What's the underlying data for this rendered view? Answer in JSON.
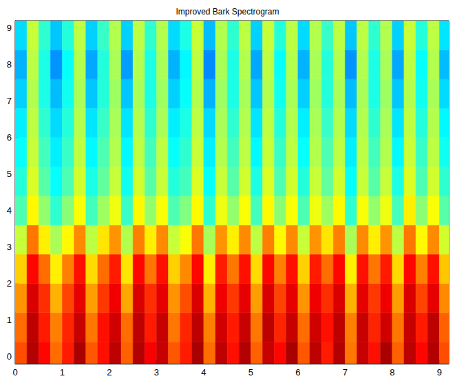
{
  "chart_data": {
    "type": "heatmap",
    "title": "Improved Bark Spectrogram",
    "x": [
      0.125,
      0.375,
      0.625,
      0.875,
      1.125,
      1.375,
      1.625,
      1.875,
      2.125,
      2.375,
      2.625,
      2.875,
      3.125,
      3.375,
      3.625,
      3.875,
      4.125,
      4.375,
      4.625,
      4.875,
      5.125,
      5.375,
      5.625,
      5.875,
      6.125,
      6.375,
      6.625,
      6.875,
      7.125,
      7.375,
      7.625,
      7.875,
      8.125,
      8.375,
      8.625,
      8.875,
      9.125
    ],
    "y": [
      0,
      0.8,
      1.6,
      2.4,
      3.2,
      4.0,
      4.8,
      5.6,
      6.4,
      7.2,
      8.0,
      8.8
    ],
    "values": [
      [
        80,
        95,
        87,
        77,
        85,
        96,
        79,
        86,
        94,
        78,
        95,
        88,
        93,
        79,
        85,
        96,
        77,
        94,
        86,
        95,
        78,
        93,
        87,
        96,
        79,
        94,
        85,
        95,
        76,
        93,
        86,
        96,
        78,
        94,
        87,
        95,
        80
      ],
      [
        77,
        94,
        85,
        75,
        84,
        93,
        76,
        86,
        92,
        77,
        94,
        85,
        93,
        76,
        84,
        94,
        75,
        92,
        85,
        93,
        76,
        94,
        84,
        93,
        77,
        92,
        86,
        94,
        75,
        93,
        84,
        92,
        76,
        93,
        85,
        94,
        78
      ],
      [
        73,
        91,
        83,
        70,
        81,
        90,
        72,
        82,
        89,
        71,
        91,
        83,
        90,
        73,
        80,
        91,
        70,
        89,
        82,
        90,
        72,
        91,
        81,
        90,
        73,
        89,
        83,
        91,
        70,
        90,
        82,
        89,
        72,
        91,
        81,
        90,
        74
      ],
      [
        67,
        87,
        77,
        64,
        75,
        86,
        66,
        77,
        85,
        65,
        87,
        76,
        86,
        67,
        74,
        87,
        64,
        85,
        76,
        86,
        66,
        87,
        75,
        86,
        67,
        85,
        77,
        87,
        64,
        86,
        76,
        85,
        66,
        87,
        75,
        86,
        68
      ],
      [
        57,
        76,
        64,
        54,
        63,
        74,
        56,
        65,
        73,
        55,
        75,
        64,
        74,
        57,
        62,
        76,
        54,
        73,
        64,
        74,
        56,
        75,
        63,
        74,
        57,
        73,
        65,
        75,
        54,
        74,
        64,
        73,
        56,
        76,
        63,
        74,
        58
      ],
      [
        45,
        63,
        52,
        42,
        51,
        62,
        44,
        53,
        61,
        43,
        63,
        52,
        62,
        45,
        50,
        63,
        42,
        61,
        52,
        62,
        44,
        63,
        51,
        62,
        45,
        61,
        53,
        63,
        42,
        62,
        52,
        61,
        44,
        64,
        51,
        62,
        46
      ],
      [
        41,
        59,
        46,
        38,
        45,
        58,
        40,
        47,
        57,
        39,
        58,
        46,
        57,
        41,
        44,
        59,
        38,
        57,
        46,
        58,
        40,
        59,
        45,
        58,
        41,
        57,
        47,
        58,
        38,
        57,
        46,
        57,
        40,
        59,
        45,
        58,
        42
      ],
      [
        38,
        57,
        44,
        36,
        43,
        56,
        37,
        45,
        55,
        37,
        56,
        44,
        56,
        38,
        42,
        57,
        36,
        55,
        44,
        56,
        37,
        57,
        43,
        56,
        38,
        55,
        45,
        56,
        36,
        56,
        44,
        55,
        37,
        57,
        43,
        56,
        39
      ],
      [
        36,
        56,
        42,
        34,
        41,
        55,
        35,
        43,
        54,
        35,
        55,
        42,
        54,
        36,
        40,
        56,
        34,
        54,
        42,
        55,
        35,
        56,
        41,
        55,
        36,
        54,
        43,
        55,
        34,
        55,
        42,
        54,
        35,
        56,
        41,
        55,
        37
      ],
      [
        33,
        55,
        40,
        31,
        39,
        54,
        32,
        41,
        53,
        32,
        54,
        40,
        53,
        33,
        38,
        55,
        30,
        53,
        40,
        54,
        32,
        55,
        39,
        54,
        33,
        53,
        41,
        54,
        31,
        54,
        40,
        53,
        32,
        55,
        39,
        54,
        34
      ],
      [
        30,
        56,
        40,
        27,
        38,
        55,
        29,
        41,
        54,
        28,
        55,
        40,
        54,
        30,
        37,
        56,
        26,
        54,
        40,
        55,
        29,
        56,
        38,
        55,
        30,
        54,
        41,
        55,
        27,
        55,
        40,
        54,
        29,
        56,
        38,
        55,
        31
      ],
      [
        34,
        57,
        42,
        32,
        41,
        56,
        33,
        43,
        55,
        33,
        56,
        42,
        55,
        34,
        40,
        57,
        31,
        55,
        42,
        56,
        33,
        57,
        41,
        56,
        34,
        55,
        43,
        56,
        32,
        56,
        42,
        55,
        33,
        57,
        41,
        56,
        35
      ]
    ],
    "value_range": [
      0,
      100
    ],
    "xlim": [
      0,
      9.2
    ],
    "xticks": [
      0,
      1,
      2,
      3,
      4,
      5,
      6,
      7,
      8,
      9
    ],
    "ylim": [
      -0.2,
      9.2
    ],
    "yticks": [
      0,
      1,
      2,
      3,
      4,
      5,
      6,
      7,
      8,
      9
    ]
  }
}
